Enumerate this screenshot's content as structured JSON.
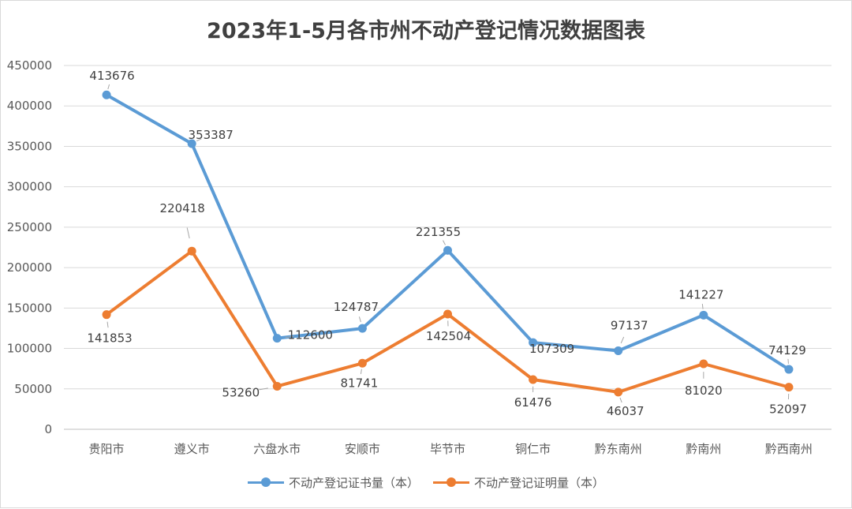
{
  "chart_data": {
    "type": "line",
    "title": "2023年1-5月各市州不动产登记情况数据图表",
    "categories": [
      "贵阳市",
      "遵义市",
      "六盘水市",
      "安顺市",
      "毕节市",
      "铜仁市",
      "黔东南州",
      "黔南州",
      "黔西南州"
    ],
    "ylim": [
      0,
      450000
    ],
    "yticks": [
      0,
      50000,
      100000,
      150000,
      200000,
      250000,
      300000,
      350000,
      400000,
      450000
    ],
    "grid": true,
    "legend_position": "bottom",
    "series": [
      {
        "name": "不动产登记证书量（本）",
        "color": "#5b9bd5",
        "values": [
          413676,
          353387,
          112600,
          124787,
          221355,
          107309,
          97137,
          141227,
          74129
        ]
      },
      {
        "name": "不动产登记证明量（本）",
        "color": "#ed7d31",
        "values": [
          141853,
          220418,
          53260,
          81741,
          142504,
          61476,
          46037,
          81020,
          52097
        ]
      }
    ]
  }
}
